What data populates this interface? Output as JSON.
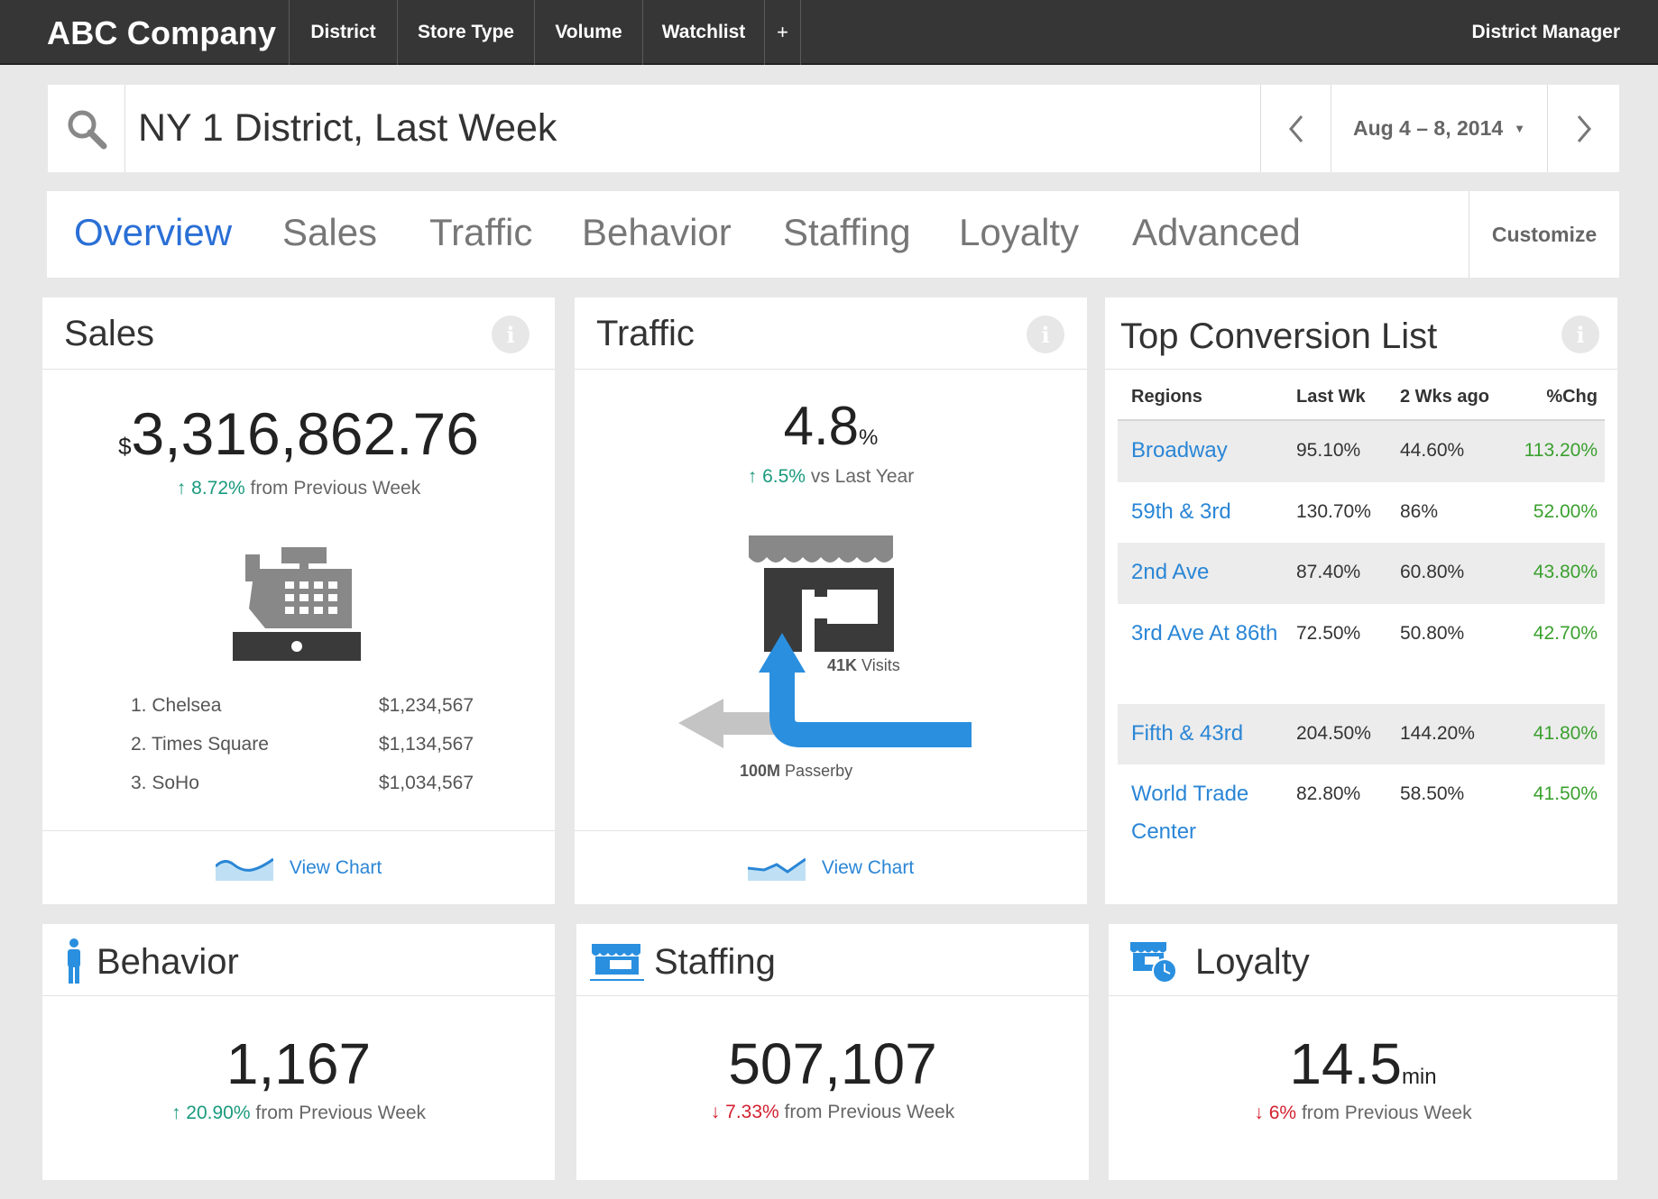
{
  "topbar": {
    "brand": "ABC Company",
    "nav": [
      "District",
      "Store Type",
      "Volume",
      "Watchlist",
      "+"
    ],
    "user": "District Manager"
  },
  "search": {
    "value": "NY 1 District, Last Week",
    "date_range": "Aug 4 – 8, 2014"
  },
  "tabs": {
    "items": [
      "Overview",
      "Sales",
      "Traffic",
      "Behavior",
      "Staffing",
      "Loyalty",
      "Advanced"
    ],
    "active": "Overview",
    "customize": "Customize"
  },
  "sales": {
    "title": "Sales",
    "currency": "$",
    "amount": "3,316,862.76",
    "change": "8.72%",
    "change_text": "from Previous Week",
    "direction": "up",
    "ranking": [
      {
        "rank": "1. Chelsea",
        "value": "$1,234,567"
      },
      {
        "rank": "2. Times Square",
        "value": "$1,134,567"
      },
      {
        "rank": "3. SoHo",
        "value": "$1,034,567"
      }
    ],
    "view_chart": "View Chart"
  },
  "traffic": {
    "title": "Traffic",
    "value": "4.8",
    "unit": "%",
    "change": "6.5%",
    "change_text": "vs Last Year",
    "direction": "up",
    "visits_num": "41K",
    "visits_label": "Visits",
    "passerby_num": "100M",
    "passerby_label": "Passerby",
    "view_chart": "View Chart"
  },
  "conversion": {
    "title": "Top Conversion List",
    "headers": [
      "Regions",
      "Last Wk",
      "2 Wks ago",
      "%Chg"
    ],
    "rows": [
      {
        "region": "Broadway",
        "last_wk": "95.10%",
        "two_wks": "44.60%",
        "chg": "113.20%"
      },
      {
        "region": "59th & 3rd",
        "last_wk": "130.70%",
        "two_wks": "86%",
        "chg": "52.00%"
      },
      {
        "region": "2nd Ave",
        "last_wk": "87.40%",
        "two_wks": "60.80%",
        "chg": "43.80%"
      },
      {
        "region": "3rd Ave At 86th",
        "last_wk": "72.50%",
        "two_wks": "50.80%",
        "chg": "42.70%"
      },
      {
        "region": "Fifth & 43rd",
        "last_wk": "204.50%",
        "two_wks": "144.20%",
        "chg": "41.80%"
      },
      {
        "region": "World Trade Center",
        "last_wk": "82.80%",
        "two_wks": "58.50%",
        "chg": "41.50%"
      }
    ]
  },
  "behavior": {
    "title": "Behavior",
    "value": "1,167",
    "change": "20.90%",
    "change_text": "from Previous Week",
    "direction": "up"
  },
  "staffing": {
    "title": "Staffing",
    "value": "507,107",
    "change": "7.33%",
    "change_text": "from Previous Week",
    "direction": "down"
  },
  "loyalty": {
    "title": "Loyalty",
    "value": "14.5",
    "unit": "min",
    "change": "6%",
    "change_text": "from Previous Week",
    "direction": "down"
  },
  "colors": {
    "accent": "#2a86d6",
    "tab_active": "#2a6fd6",
    "up": "#1a9a7e",
    "down": "#d32030",
    "positive_change": "#3aa02e",
    "topbar": "#363636"
  }
}
